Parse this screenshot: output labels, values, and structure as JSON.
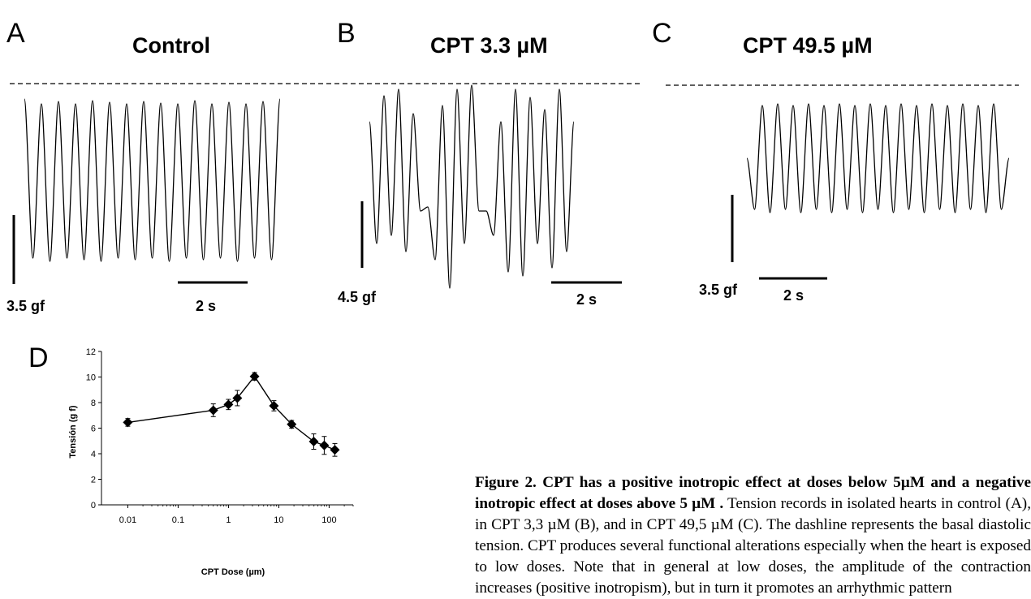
{
  "panels": [
    {
      "label": "A",
      "title": "Control",
      "force_scale": "3.5 gf",
      "time_scale": "2 s"
    },
    {
      "label": "B",
      "title": "CPT 3.3 µM",
      "force_scale": "4.5 gf",
      "time_scale": "2 s"
    },
    {
      "label": "C",
      "title": "CPT 49.5 µM",
      "force_scale": "3.5 gf",
      "time_scale": "2 s"
    }
  ],
  "panel_d_label": "D",
  "chart_data": {
    "type": "line",
    "title": "",
    "xlabel": "CPT Dose (µm)",
    "ylabel": "Tensión (g f)",
    "x_scale": "log",
    "xlim": [
      0.003,
      300
    ],
    "ylim": [
      0,
      12
    ],
    "x_ticks": [
      "0.01",
      "0.1",
      "1",
      "10",
      "100"
    ],
    "y_ticks": [
      "0",
      "2",
      "4",
      "6",
      "8",
      "10",
      "12"
    ],
    "grid": false,
    "marker": "diamond",
    "x": [
      0.01,
      0.5,
      1.0,
      1.5,
      3.3,
      8.0,
      18.0,
      49.5,
      80.0,
      130.0
    ],
    "y": [
      6.45,
      7.4,
      7.85,
      8.35,
      10.05,
      7.75,
      6.3,
      4.95,
      4.65,
      4.3
    ],
    "error": [
      0.3,
      0.5,
      0.4,
      0.6,
      0.3,
      0.4,
      0.3,
      0.6,
      0.7,
      0.5
    ]
  },
  "caption": {
    "bold": "Figure 2. CPT has a positive inotropic effect at doses below 5µM and a negative inotropic effect at doses above 5 µM .",
    "text": "Tension records in isolated hearts in control (A), in CPT 3,3 µM (B), and in CPT 49,5 µM (C). The dashline represents the basal diastolic tension. CPT produces several functional alterations especially when the heart is exposed to low doses. Note that in general at low doses, the amplitude of the contraction increases (positive inotropism), but in turn it promotes an arrhythmic pattern"
  }
}
